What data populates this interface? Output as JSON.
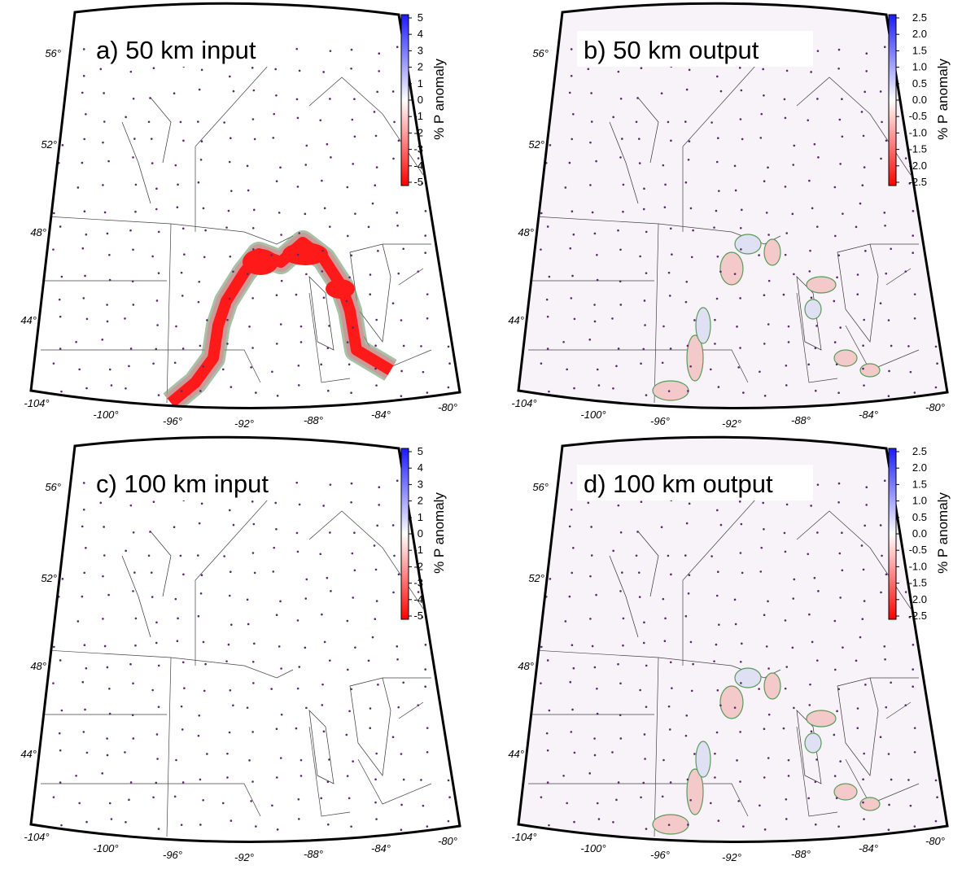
{
  "panels": [
    {
      "label": "a) 50 km input",
      "colorbar": {
        "title": "% P anomaly",
        "ticks": [
          "5",
          "4",
          "3",
          "2",
          "1",
          "0",
          "-1",
          "-2",
          "-3",
          "-4",
          "-5"
        ]
      },
      "lat_labels": [
        "56°",
        "52°",
        "48°",
        "44°"
      ],
      "lon_labels": [
        "-104°",
        "-100°",
        "-96°",
        "-92°",
        "-88°",
        "-84°",
        "-80°"
      ]
    },
    {
      "label": "b) 50 km output",
      "colorbar": {
        "title": "% P anomaly",
        "ticks": [
          "2.5",
          "2.0",
          "1.5",
          "1.0",
          "0.5",
          "0.0",
          "-0.5",
          "-1.0",
          "-1.5",
          "-2.0",
          "-2.5"
        ]
      },
      "lat_labels": [
        "56°",
        "52°",
        "48°",
        "44°"
      ],
      "lon_labels": [
        "-104°",
        "-100°",
        "-96°",
        "-92°",
        "-88°",
        "-84°",
        "-80°"
      ]
    },
    {
      "label": "c) 100 km input",
      "colorbar": {
        "title": "% P anomaly",
        "ticks": [
          "5",
          "4",
          "3",
          "2",
          "1",
          "0",
          "-1",
          "-2",
          "-3",
          "-4",
          "-5"
        ]
      },
      "lat_labels": [
        "56°",
        "52°",
        "48°",
        "44°"
      ],
      "lon_labels": [
        "-104°",
        "-100°",
        "-96°",
        "-92°",
        "-88°",
        "-84°",
        "-80°"
      ]
    },
    {
      "label": "d) 100 km output",
      "colorbar": {
        "title": "% P anomaly",
        "ticks": [
          "2.5",
          "2.0",
          "1.5",
          "1.0",
          "0.5",
          "0.0",
          "-0.5",
          "-1.0",
          "-1.5",
          "-2.0",
          "-2.5"
        ]
      },
      "lat_labels": [
        "56°",
        "52°",
        "48°",
        "44°"
      ],
      "lon_labels": [
        "-104°",
        "-100°",
        "-96°",
        "-92°",
        "-88°",
        "-84°",
        "-80°"
      ]
    }
  ]
}
